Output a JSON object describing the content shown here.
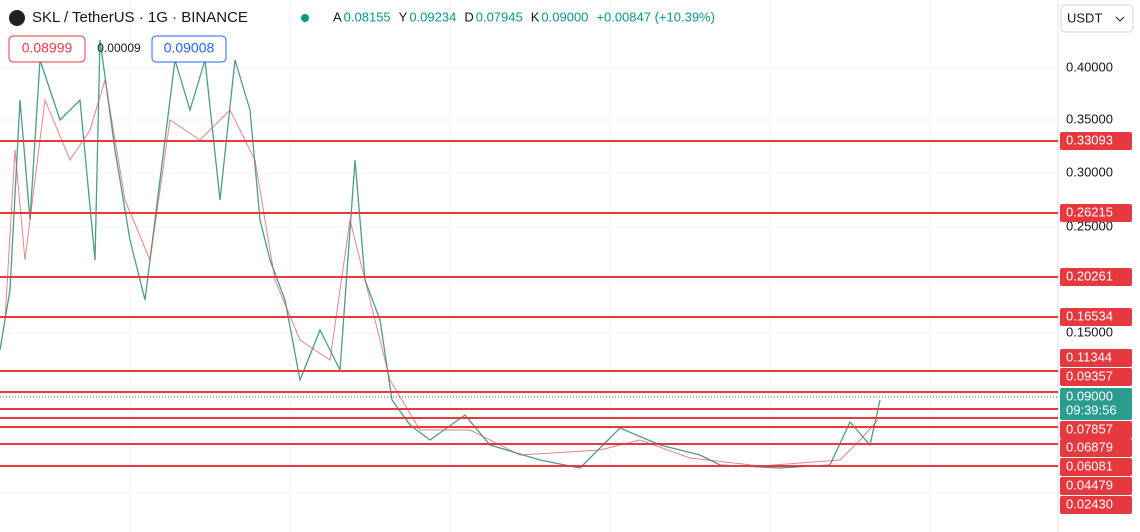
{
  "header": {
    "symbol": "SKL / TetherUS · 1G · BINANCE",
    "ohlc": [
      {
        "label": "A",
        "value": "0.08155"
      },
      {
        "label": "Y",
        "value": "0.09234"
      },
      {
        "label": "D",
        "value": "0.07945"
      },
      {
        "label": "K",
        "value": "0.09000"
      }
    ],
    "change": "+0.00847 (+10.39%)"
  },
  "order_boxes": {
    "sell": "0.08999",
    "spread": "0.00009",
    "buy": "0.09008"
  },
  "currency": "USDT",
  "axis_labels": [
    "0.40000",
    "0.35000",
    "0.30000",
    "0.25000",
    "0.15000"
  ],
  "levels": [
    "0.33093",
    "0.26215",
    "0.20261",
    "0.16534",
    "0.11344",
    "0.09357",
    "0.07857",
    "0.06879",
    "0.06081",
    "0.04479",
    "0.02430"
  ],
  "current_price": "0.09000",
  "countdown": "09:39:56"
}
